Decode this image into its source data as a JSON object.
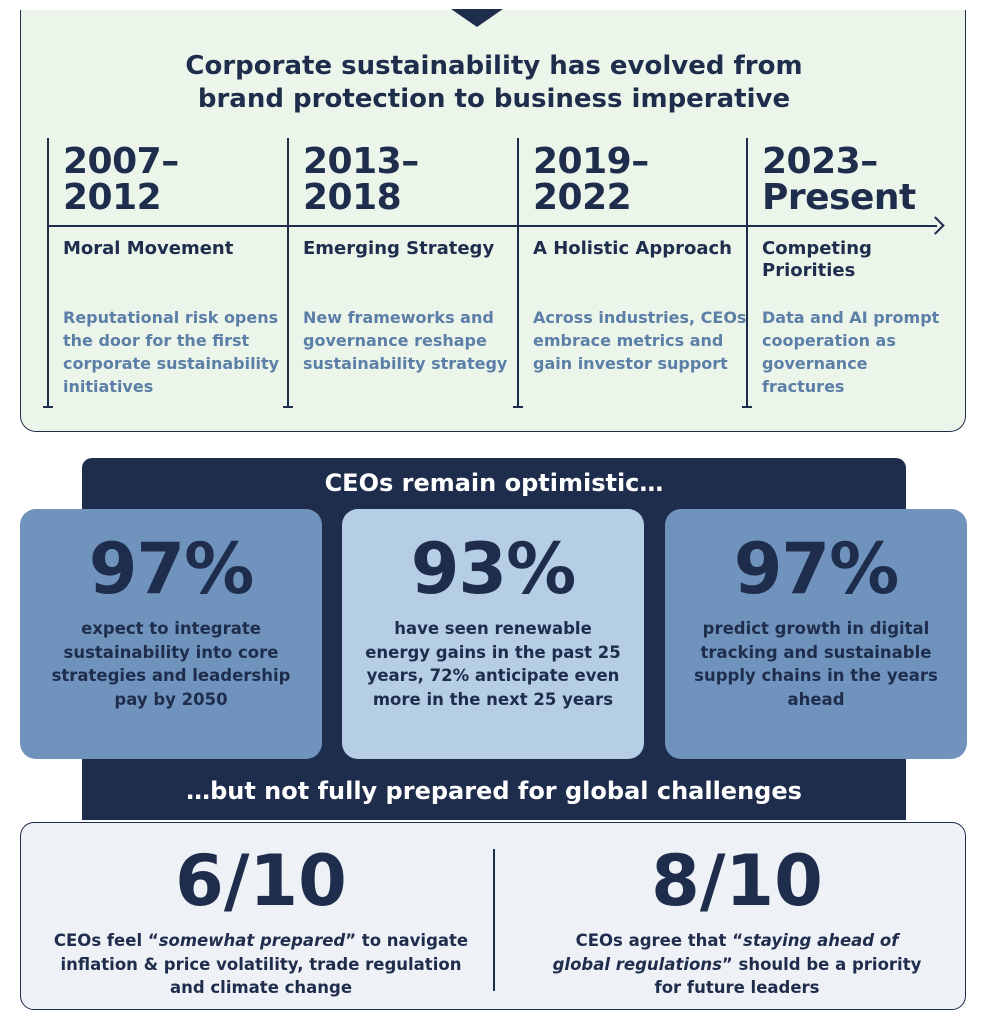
{
  "timeline": {
    "title_line1": "Corporate sustainability has evolved from",
    "title_line2": "brand protection to business imperative",
    "periods": [
      {
        "years_line1": "2007–",
        "years_line2": "2012",
        "heading": "Moral Movement",
        "description": "Reputational risk opens the door for the first corporate sustainability initiatives"
      },
      {
        "years_line1": "2013–",
        "years_line2": "2018",
        "heading": "Emerging Strategy",
        "description": "New frameworks and governance reshape sustainability strategy"
      },
      {
        "years_line1": "2019–",
        "years_line2": "2022",
        "heading": "A Holistic Approach",
        "description": "Across industries, CEOs embrace metrics and gain investor support"
      },
      {
        "years_line1": "2023–",
        "years_line2": "Present",
        "heading": "Competing Priorities",
        "description": "Data and AI prompt cooperation as governance fractures"
      }
    ]
  },
  "optimism": {
    "title": "CEOs remain optimistic…",
    "stats": [
      {
        "value": "97%",
        "text": "expect to integrate sustainability into core strategies and leadership pay by 2050"
      },
      {
        "value": "93%",
        "text": "have seen renewable energy gains in the past 25 years, 72% anticipate even more in the next 25 years"
      },
      {
        "value": "97%",
        "text": "predict growth in digital tracking and sustainable supply chains in the years ahead"
      }
    ],
    "subtitle": "…but not fully prepared for global challenges"
  },
  "challenges": {
    "left": {
      "value": "6/10",
      "text_before": "CEOs feel “",
      "text_emphasis": "somewhat prepared",
      "text_after": "” to navigate inflation & price volatility, trade regulation and climate change"
    },
    "right": {
      "value": "8/10",
      "text_before": "CEOs agree that “",
      "text_emphasis": "staying ahead of global regulations",
      "text_after": "” should be a priority for future leaders"
    }
  },
  "colors": {
    "navy": "#1f2d4d",
    "timeline_bg": "#ebf5ea",
    "muted_blue_text": "#5c7fa8",
    "card_mid_blue": "#6f93bc",
    "card_light_blue": "#b5cee4",
    "bottom_bg": "#eef1f6"
  }
}
